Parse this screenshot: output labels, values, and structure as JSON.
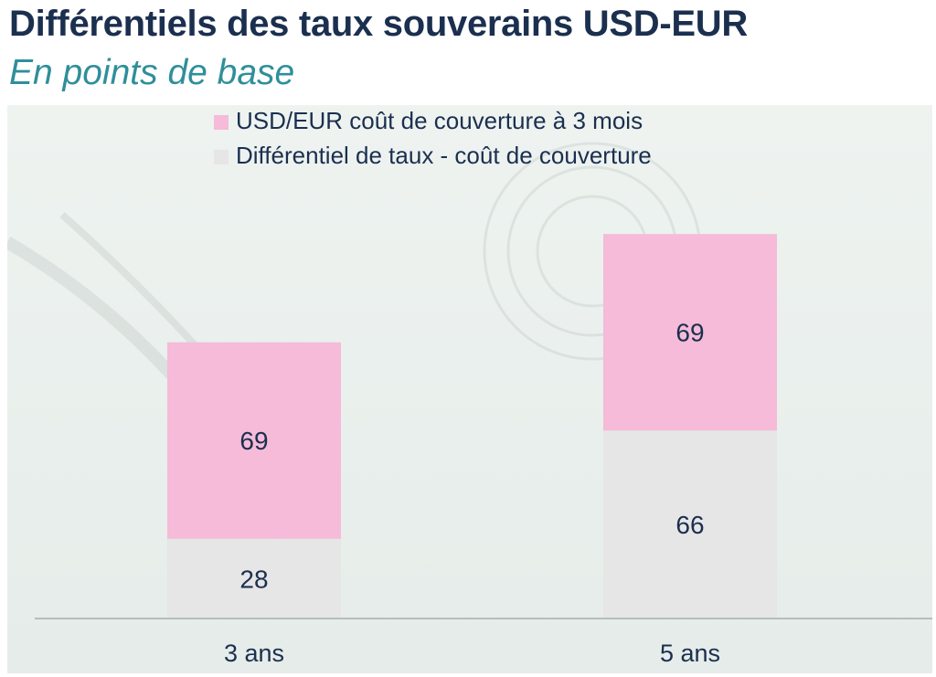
{
  "title": "Différentiels des taux souverains USD-EUR",
  "subtitle": "En points de base",
  "colors": {
    "hedge": "#f5bbd8",
    "diff": "#e6e6e6",
    "text": "#1b2f4f",
    "baseline": "#b7bdbb",
    "title": "#1b2f4f",
    "subtitle": "#2f8f9a"
  },
  "chart_data": {
    "type": "bar",
    "stacked": true,
    "categories": [
      "3 ans",
      "5 ans"
    ],
    "series": [
      {
        "name": "Différentiel de taux - coût de couverture",
        "values": [
          28,
          66
        ],
        "color": "#e6e6e6"
      },
      {
        "name": "USD/EUR coût de couverture à 3 mois",
        "values": [
          69,
          69
        ],
        "color": "#f5bbd8"
      }
    ],
    "legend": [
      "USD/EUR coût de couverture à 3 mois",
      "Différentiel de taux - coût de couverture"
    ],
    "legend_position": "top",
    "xlabel": "",
    "ylabel": "",
    "ylim": [
      0,
      145
    ],
    "grid": false,
    "data_labels": true
  }
}
